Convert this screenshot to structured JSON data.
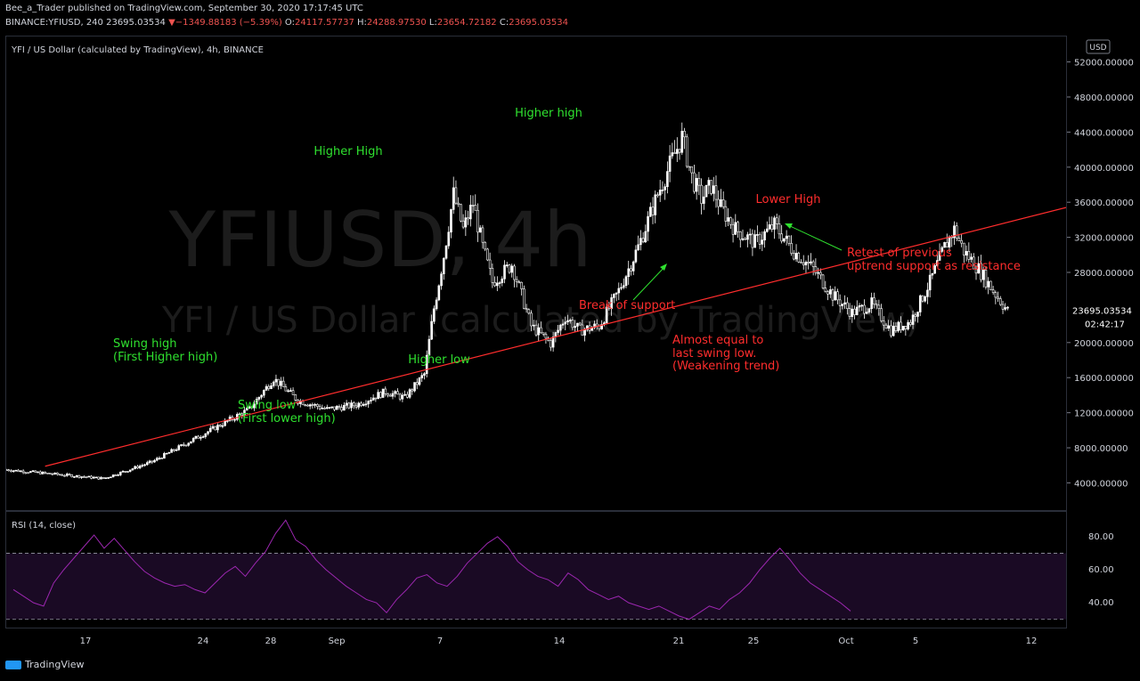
{
  "header": {
    "line1": "Bee_a_Trader published on TradingView.com, September 30, 2020 17:17:45 UTC",
    "symbol": "BINANCE:YFIUSD, 240",
    "price": "23695.03534",
    "change": "▼−1349.88183 (−5.39%)",
    "o_label": "O:",
    "o_val": "24117.57737",
    "h_label": "H:",
    "h_val": "24288.97530",
    "l_label": "L:",
    "l_val": "23654.72182",
    "c_label": "C:",
    "c_val": "23695.03534"
  },
  "legend": "YFI / US Dollar (calculated by TradingView), 4h, BINANCE",
  "watermark": {
    "line1": "YFIUSD, 4h",
    "line2": "YFI / US Dollar (calculated by TradingView)"
  },
  "rsi_label": "RSI (14, close)",
  "currency": "USD",
  "price_tag": "23695.03534",
  "countdown": "02:42:17",
  "footer": "TradingView",
  "colors": {
    "up": "#ffffff",
    "down": "#ffffff",
    "trend": "#ff2d2d",
    "green": "#2fe12f",
    "red": "#ff2d2d",
    "rsi": "#9c27b0"
  },
  "chart_data": {
    "type": "candlestick",
    "y_ticks": [
      4000,
      8000,
      12000,
      16000,
      20000,
      24000,
      28000,
      32000,
      36000,
      40000,
      44000,
      48000,
      52000
    ],
    "y_tick_labels": [
      "4000.00000",
      "8000.00000",
      "12000.00000",
      "16000.00000",
      "20000.00000",
      "",
      "28000.00000",
      "32000.00000",
      "36000.00000",
      "40000.00000",
      "44000.00000",
      "48000.00000",
      "52000.00000"
    ],
    "ylim": [
      1000,
      55000
    ],
    "x_ticks": [
      "17",
      "24",
      "28",
      "Sep",
      "7",
      "14",
      "21",
      "25",
      "Oct",
      "5",
      "12"
    ],
    "price_path": [
      [
        0,
        5600
      ],
      [
        10,
        5100
      ],
      [
        20,
        4600
      ],
      [
        30,
        6500
      ],
      [
        40,
        9500
      ],
      [
        50,
        12500
      ],
      [
        55,
        16000
      ],
      [
        60,
        13500
      ],
      [
        66,
        12500
      ],
      [
        72,
        13000
      ],
      [
        78,
        14500
      ],
      [
        82,
        13800
      ],
      [
        86,
        16500
      ],
      [
        88,
        24000
      ],
      [
        90,
        30000
      ],
      [
        92,
        37000
      ],
      [
        94,
        33000
      ],
      [
        96,
        36000
      ],
      [
        98,
        31000
      ],
      [
        100,
        27000
      ],
      [
        104,
        29000
      ],
      [
        108,
        22000
      ],
      [
        112,
        20000
      ],
      [
        115,
        23000
      ],
      [
        118,
        21500
      ],
      [
        122,
        22000
      ],
      [
        126,
        26000
      ],
      [
        130,
        31000
      ],
      [
        134,
        37000
      ],
      [
        137,
        41000
      ],
      [
        139,
        43500
      ],
      [
        141,
        39000
      ],
      [
        143,
        36500
      ],
      [
        145,
        38000
      ],
      [
        147,
        35500
      ],
      [
        150,
        33000
      ],
      [
        154,
        31500
      ],
      [
        158,
        33500
      ],
      [
        162,
        30500
      ],
      [
        166,
        28500
      ],
      [
        170,
        25500
      ],
      [
        174,
        23500
      ],
      [
        178,
        24500
      ],
      [
        182,
        21500
      ],
      [
        186,
        22500
      ],
      [
        190,
        27000
      ],
      [
        193,
        31000
      ],
      [
        195,
        33000
      ],
      [
        197,
        30500
      ],
      [
        200,
        28500
      ],
      [
        203,
        26000
      ],
      [
        206,
        23700
      ]
    ],
    "trendline": [
      [
        8,
        6000
      ],
      [
        218,
        35500
      ]
    ],
    "annotations": [
      {
        "text": "Swing high",
        "color": "green"
      },
      {
        "text": "(First Higher high)",
        "color": "green"
      },
      {
        "text": "Swing low",
        "color": "green"
      },
      {
        "text": "(First lower high)",
        "color": "green"
      },
      {
        "text": "Higher High",
        "color": "green"
      },
      {
        "text": "Higher high",
        "color": "green"
      },
      {
        "text": "Higher low",
        "color": "green"
      },
      {
        "text": "Lower High",
        "color": "red"
      },
      {
        "text": "Break of support",
        "color": "red"
      },
      {
        "text": "Almost equal to",
        "color": "red"
      },
      {
        "text": "last swing low.",
        "color": "red"
      },
      {
        "text": "(Weakening trend)",
        "color": "red"
      },
      {
        "text": "Retest of previous",
        "color": "red"
      },
      {
        "text": "uptrend support as resistance",
        "color": "red"
      }
    ],
    "rsi": {
      "ylim": [
        25,
        95
      ],
      "ticks": [
        40,
        60,
        80
      ],
      "tick_labels": [
        "40.00",
        "60.00",
        "80.00"
      ],
      "bands": [
        30,
        70
      ],
      "values": [
        48,
        44,
        40,
        38,
        52,
        60,
        67,
        74,
        81,
        73,
        79,
        72,
        65,
        59,
        55,
        52,
        50,
        51,
        48,
        46,
        52,
        58,
        62,
        56,
        64,
        71,
        82,
        90,
        78,
        74,
        66,
        60,
        55,
        50,
        46,
        42,
        40,
        34,
        42,
        48,
        55,
        57,
        52,
        50,
        56,
        64,
        70,
        76,
        80,
        74,
        65,
        60,
        56,
        54,
        50,
        58,
        54,
        48,
        45,
        42,
        44,
        40,
        38,
        36,
        38,
        35,
        32,
        30,
        34,
        38,
        36,
        42,
        46,
        52,
        60,
        67,
        73,
        66,
        58,
        52,
        48,
        44,
        40,
        35
      ]
    }
  }
}
